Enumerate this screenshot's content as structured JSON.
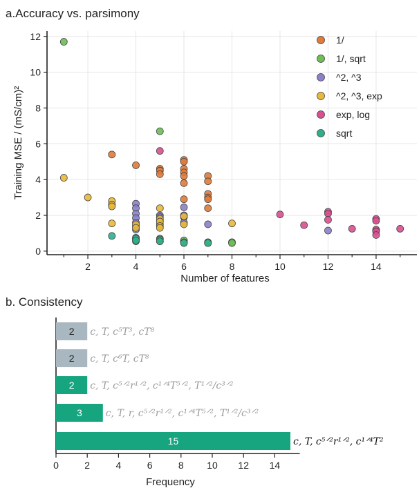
{
  "figure": {
    "panel_a_title": "a.Accuracy vs. parsimony",
    "panel_b_title": "b. Consistency"
  },
  "chart_data": [
    {
      "type": "scatter",
      "title": "a.Accuracy vs. parsimony",
      "xlabel": "Number of features",
      "ylabel": "Training MSE / (mS/cm)²",
      "xlim": [
        0.3,
        15.7
      ],
      "ylim": [
        -0.2,
        12.3
      ],
      "xticks": [
        2,
        4,
        6,
        8,
        10,
        12,
        14
      ],
      "yticks": [
        0,
        2,
        4,
        6,
        8,
        10,
        12
      ],
      "grid": true,
      "legend_position": "top-right",
      "series": [
        {
          "name": "1/",
          "color": "#E07B39",
          "points": [
            [
              3,
              5.4
            ],
            [
              4,
              4.8
            ],
            [
              5,
              4.6
            ],
            [
              5,
              4.5
            ],
            [
              5,
              4.3
            ],
            [
              6,
              5.1
            ],
            [
              6,
              5.0
            ],
            [
              6,
              4.6
            ],
            [
              6,
              4.4
            ],
            [
              6,
              4.2
            ],
            [
              6,
              3.8
            ],
            [
              6,
              2.9
            ],
            [
              7,
              4.2
            ],
            [
              7,
              3.9
            ],
            [
              7,
              3.2
            ],
            [
              7,
              3.0
            ],
            [
              7,
              2.9
            ],
            [
              7,
              2.4
            ]
          ]
        },
        {
          "name": "1/, sqrt",
          "color": "#6DBE55",
          "points": [
            [
              1,
              11.7
            ],
            [
              4,
              0.65
            ],
            [
              4,
              0.55
            ],
            [
              5,
              6.7
            ],
            [
              5,
              0.7
            ],
            [
              5,
              0.55
            ],
            [
              6,
              0.6
            ],
            [
              6,
              0.5
            ],
            [
              7,
              0.5
            ],
            [
              7,
              0.45
            ],
            [
              8,
              0.5
            ],
            [
              8,
              0.45
            ]
          ]
        },
        {
          "name": "^2, ^3",
          "color": "#8A82C8",
          "points": [
            [
              4,
              2.65
            ],
            [
              4,
              2.4
            ],
            [
              4,
              2.1
            ],
            [
              4,
              1.85
            ],
            [
              4,
              1.6
            ],
            [
              4,
              1.4
            ],
            [
              4,
              1.2
            ],
            [
              5,
              2.0
            ],
            [
              5,
              1.9
            ],
            [
              5,
              1.7
            ],
            [
              5,
              1.5
            ],
            [
              6,
              2.45
            ],
            [
              6,
              2.0
            ],
            [
              6,
              1.9
            ],
            [
              6,
              1.6
            ],
            [
              7,
              1.5
            ],
            [
              12,
              1.15
            ],
            [
              14,
              1.15
            ]
          ]
        },
        {
          "name": "^2, ^3, exp",
          "color": "#E8B83A",
          "points": [
            [
              1,
              4.1
            ],
            [
              2,
              3.0
            ],
            [
              3,
              2.8
            ],
            [
              3,
              2.6
            ],
            [
              3,
              2.5
            ],
            [
              3,
              1.55
            ],
            [
              4,
              1.5
            ],
            [
              4,
              1.3
            ],
            [
              5,
              2.4
            ],
            [
              5,
              1.8
            ],
            [
              5,
              1.65
            ],
            [
              5,
              1.4
            ],
            [
              5,
              1.3
            ],
            [
              6,
              1.95
            ],
            [
              6,
              1.5
            ],
            [
              8,
              1.55
            ]
          ]
        },
        {
          "name": "exp, log",
          "color": "#D94F8F",
          "points": [
            [
              5,
              5.6
            ],
            [
              10,
              2.05
            ],
            [
              11,
              1.45
            ],
            [
              12,
              2.2
            ],
            [
              12,
              2.1
            ],
            [
              12,
              1.75
            ],
            [
              13,
              1.25
            ],
            [
              14,
              1.8
            ],
            [
              14,
              1.7
            ],
            [
              14,
              1.2
            ],
            [
              14,
              1.1
            ],
            [
              14,
              0.9
            ],
            [
              15,
              1.25
            ]
          ]
        },
        {
          "name": "sqrt",
          "color": "#2FB08D",
          "points": [
            [
              3,
              0.85
            ],
            [
              4,
              0.75
            ],
            [
              4,
              0.7
            ],
            [
              4,
              0.6
            ],
            [
              5,
              0.65
            ],
            [
              5,
              0.55
            ],
            [
              6,
              0.45
            ],
            [
              7,
              0.45
            ]
          ]
        }
      ]
    },
    {
      "type": "bar",
      "orientation": "horizontal",
      "title": "b. Consistency",
      "xlabel": "Frequency",
      "xlim": [
        0,
        15.6
      ],
      "xticks": [
        0,
        2,
        4,
        6,
        8,
        10,
        12,
        14
      ],
      "categories": [
        "c, T, c⁵T³, cT⁸",
        "c, T, c⁶T, cT⁸",
        "c, T, c^{5/2}r^{1/2}, c^{1/4}T^{5/2}, T^{1/2}/c^{3/2}",
        "c, T, r, c^{5/2}r^{1/2}, c^{1/4}T^{5/2}, T^{1/2}/c^{3/2}",
        "c, T, c^{5/2}r^{1/2}, c^{1/4}T²"
      ],
      "values": [
        2,
        2,
        2,
        3,
        15
      ],
      "bar_labels": [
        "2",
        "2",
        "2",
        "3",
        "15"
      ],
      "colors": [
        "#A9B8C0",
        "#A9B8C0",
        "#17A57F",
        "#17A57F",
        "#17A57F"
      ],
      "label_colors": [
        "#9A9A9A",
        "#9A9A9A",
        "#9A9A9A",
        "#9A9A9A",
        "#111111"
      ]
    }
  ]
}
